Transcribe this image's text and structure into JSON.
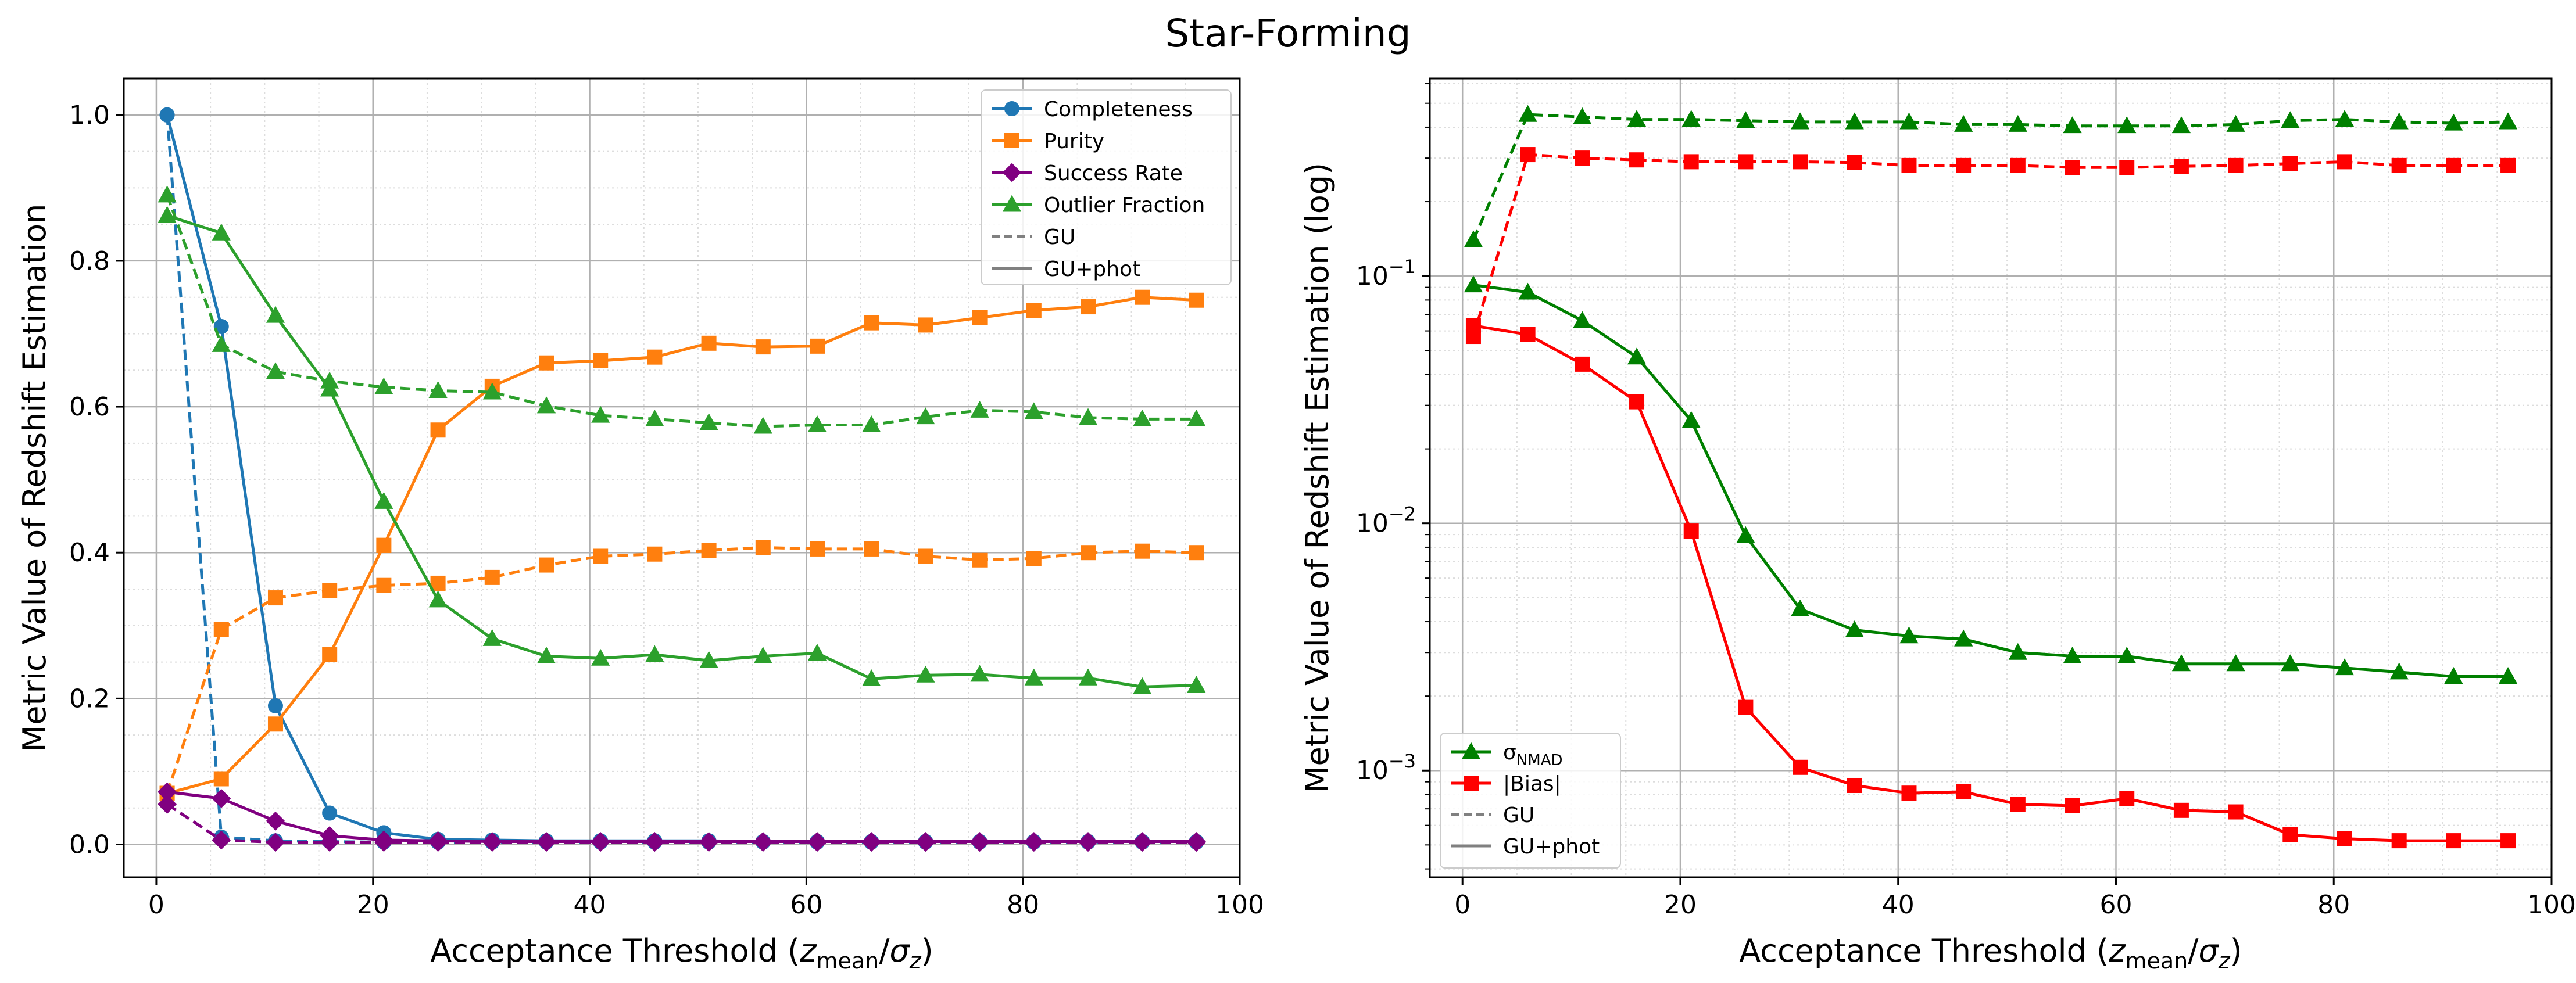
{
  "figure": {
    "title": "Star-Forming"
  },
  "chart_data": [
    {
      "type": "line",
      "xlabel": "Acceptance Threshold",
      "xlabel_math": "(z_mean/σ_z)",
      "ylabel": "Metric Value of Redshift Estimation",
      "xlim": [
        -3,
        100
      ],
      "ylim": [
        -0.045,
        1.05
      ],
      "yscale": "linear",
      "x_ticks": [
        0,
        20,
        40,
        60,
        80,
        100
      ],
      "x_tick_labels": [
        "0",
        "20",
        "40",
        "60",
        "80",
        "100"
      ],
      "y_ticks": [
        0.0,
        0.2,
        0.4,
        0.6,
        0.8,
        1.0
      ],
      "y_tick_labels": [
        "0.0",
        "0.2",
        "0.4",
        "0.6",
        "0.8",
        "1.0"
      ],
      "legend_position": "top-right",
      "grid": true,
      "x": [
        1,
        6,
        11,
        16,
        21,
        26,
        31,
        36,
        41,
        46,
        51,
        56,
        61,
        66,
        71,
        76,
        81,
        86,
        91,
        96
      ],
      "series": [
        {
          "name": "Completeness",
          "variant": "GU",
          "color": "#1f77b4",
          "marker": "circle",
          "dash": true,
          "values": [
            1.0,
            0.01,
            0.005,
            0.004,
            0.003,
            0.003,
            0.003,
            0.003,
            0.003,
            0.003,
            0.003,
            0.003,
            0.003,
            0.003,
            0.003,
            0.003,
            0.003,
            0.003,
            0.003,
            0.003
          ]
        },
        {
          "name": "Completeness",
          "variant": "GU+phot",
          "color": "#1f77b4",
          "marker": "circle",
          "dash": false,
          "values": [
            1.0,
            0.71,
            0.19,
            0.043,
            0.016,
            0.007,
            0.006,
            0.005,
            0.005,
            0.005,
            0.005,
            0.004,
            0.004,
            0.004,
            0.004,
            0.004,
            0.004,
            0.004,
            0.004,
            0.004
          ]
        },
        {
          "name": "Purity",
          "variant": "GU",
          "color": "#ff7f0e",
          "marker": "square",
          "dash": true,
          "values": [
            0.07,
            0.295,
            0.338,
            0.348,
            0.355,
            0.358,
            0.366,
            0.383,
            0.395,
            0.398,
            0.403,
            0.407,
            0.405,
            0.405,
            0.395,
            0.39,
            0.392,
            0.4,
            0.402,
            0.4
          ]
        },
        {
          "name": "Purity",
          "variant": "GU+phot",
          "color": "#ff7f0e",
          "marker": "square",
          "dash": false,
          "values": [
            0.07,
            0.09,
            0.165,
            0.26,
            0.41,
            0.568,
            0.628,
            0.66,
            0.663,
            0.668,
            0.687,
            0.682,
            0.683,
            0.715,
            0.712,
            0.722,
            0.732,
            0.737,
            0.75,
            0.746
          ]
        },
        {
          "name": "Success Rate",
          "variant": "GU",
          "color": "#800080",
          "marker": "diamond",
          "dash": true,
          "values": [
            0.055,
            0.006,
            0.003,
            0.003,
            0.003,
            0.003,
            0.003,
            0.003,
            0.003,
            0.003,
            0.003,
            0.003,
            0.003,
            0.003,
            0.003,
            0.003,
            0.003,
            0.003,
            0.003,
            0.003
          ]
        },
        {
          "name": "Success Rate",
          "variant": "GU+phot",
          "color": "#800080",
          "marker": "diamond",
          "dash": false,
          "values": [
            0.072,
            0.063,
            0.032,
            0.012,
            0.006,
            0.005,
            0.004,
            0.004,
            0.004,
            0.004,
            0.004,
            0.004,
            0.004,
            0.004,
            0.004,
            0.004,
            0.004,
            0.004,
            0.004,
            0.004
          ]
        },
        {
          "name": "Outlier Fraction",
          "variant": "GU",
          "color": "#2ca02c",
          "marker": "triangle",
          "dash": true,
          "values": [
            0.89,
            0.685,
            0.648,
            0.635,
            0.627,
            0.622,
            0.62,
            0.601,
            0.588,
            0.583,
            0.578,
            0.573,
            0.575,
            0.575,
            0.586,
            0.595,
            0.593,
            0.585,
            0.583,
            0.583
          ]
        },
        {
          "name": "Outlier Fraction",
          "variant": "GU+phot",
          "color": "#2ca02c",
          "marker": "triangle",
          "dash": false,
          "values": [
            0.862,
            0.838,
            0.725,
            0.624,
            0.47,
            0.335,
            0.282,
            0.258,
            0.255,
            0.26,
            0.252,
            0.258,
            0.262,
            0.227,
            0.232,
            0.233,
            0.228,
            0.228,
            0.216,
            0.218
          ]
        }
      ],
      "legend": [
        {
          "label": "Completeness",
          "color": "#1f77b4",
          "marker": "circle",
          "dash": false
        },
        {
          "label": "Purity",
          "color": "#ff7f0e",
          "marker": "square",
          "dash": false
        },
        {
          "label": "Success Rate",
          "color": "#800080",
          "marker": "diamond",
          "dash": false
        },
        {
          "label": "Outlier Fraction",
          "color": "#2ca02c",
          "marker": "triangle",
          "dash": false
        },
        {
          "label": "GU",
          "color": "#808080",
          "marker": "none",
          "dash": true
        },
        {
          "label": "GU+phot",
          "color": "#808080",
          "marker": "none",
          "dash": false
        }
      ]
    },
    {
      "type": "line",
      "xlabel": "Acceptance Threshold",
      "xlabel_math": "(z_mean/σ_z)",
      "ylabel": "Metric Value of Redshift Estimation (log)",
      "xlim": [
        -3,
        100
      ],
      "ylim": [
        0.00037,
        0.63
      ],
      "yscale": "log",
      "x_ticks": [
        0,
        20,
        40,
        60,
        80,
        100
      ],
      "x_tick_labels": [
        "0",
        "20",
        "40",
        "60",
        "80",
        "100"
      ],
      "y_ticks": [
        0.001,
        0.01,
        0.1
      ],
      "y_tick_base": "10",
      "y_tick_exponents": [
        "−3",
        "−2",
        "−1"
      ],
      "legend_position": "bottom-left",
      "grid": true,
      "x": [
        1,
        6,
        11,
        16,
        21,
        26,
        31,
        36,
        41,
        46,
        51,
        56,
        61,
        66,
        71,
        76,
        81,
        86,
        91,
        96
      ],
      "series": [
        {
          "name": "σ_NMAD",
          "variant": "GU",
          "color": "#008000",
          "marker": "triangle",
          "dash": true,
          "values": [
            0.14,
            0.45,
            0.44,
            0.43,
            0.43,
            0.425,
            0.42,
            0.42,
            0.42,
            0.41,
            0.41,
            0.405,
            0.405,
            0.405,
            0.41,
            0.425,
            0.43,
            0.42,
            0.415,
            0.42
          ]
        },
        {
          "name": "σ_NMAD",
          "variant": "GU+phot",
          "color": "#008000",
          "marker": "triangle",
          "dash": false,
          "values": [
            0.092,
            0.086,
            0.066,
            0.047,
            0.026,
            0.0089,
            0.0045,
            0.0037,
            0.0035,
            0.0034,
            0.003,
            0.0029,
            0.0029,
            0.0027,
            0.0027,
            0.0027,
            0.0026,
            0.0025,
            0.0024,
            0.0024
          ]
        },
        {
          "name": "|Bias|",
          "variant": "GU",
          "color": "#ff0000",
          "marker": "square",
          "dash": true,
          "values": [
            0.057,
            0.31,
            0.3,
            0.295,
            0.29,
            0.29,
            0.29,
            0.288,
            0.28,
            0.28,
            0.28,
            0.275,
            0.275,
            0.278,
            0.28,
            0.285,
            0.29,
            0.28,
            0.28,
            0.28
          ]
        },
        {
          "name": "|Bias|",
          "variant": "GU+phot",
          "color": "#ff0000",
          "marker": "square",
          "dash": false,
          "values": [
            0.063,
            0.058,
            0.044,
            0.031,
            0.0093,
            0.0018,
            0.00103,
            0.00087,
            0.00081,
            0.00082,
            0.00073,
            0.00072,
            0.00077,
            0.00069,
            0.00068,
            0.00055,
            0.00053,
            0.00052,
            0.00052,
            0.00052
          ]
        }
      ],
      "legend": [
        {
          "label": "σ",
          "sub": "NMAD",
          "color": "#008000",
          "marker": "triangle",
          "dash": false
        },
        {
          "label": "|Bias|",
          "sub": "",
          "color": "#ff0000",
          "marker": "square",
          "dash": false
        },
        {
          "label": "GU",
          "sub": "",
          "color": "#808080",
          "marker": "none",
          "dash": true
        },
        {
          "label": "GU+phot",
          "sub": "",
          "color": "#808080",
          "marker": "none",
          "dash": false
        }
      ]
    }
  ]
}
